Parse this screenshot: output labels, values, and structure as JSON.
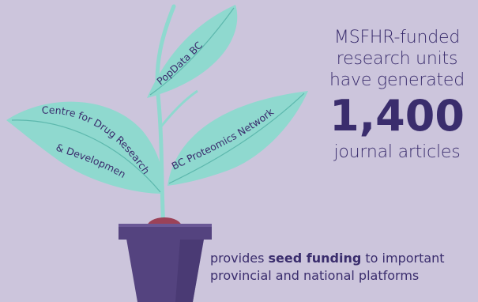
{
  "stat": {
    "line1": "MSFHR-funded",
    "line2": "research units",
    "line3": "have generated",
    "number": "1,400",
    "line4": "journal articles"
  },
  "leaves": {
    "top": "PopData BC",
    "left_line1": "Centre for Drug Research",
    "left_line2": "& Development",
    "right": "BC Proteomics Network"
  },
  "caption": {
    "before": "provides ",
    "bold": "seed funding",
    "after": " to important",
    "line2": "provincial and national platforms"
  },
  "colors": {
    "background": "#ccc5dc",
    "leaf": "#8fd9cf",
    "pot": "#54437f",
    "seed": "#9c4258",
    "text": "#3a2d6d"
  }
}
